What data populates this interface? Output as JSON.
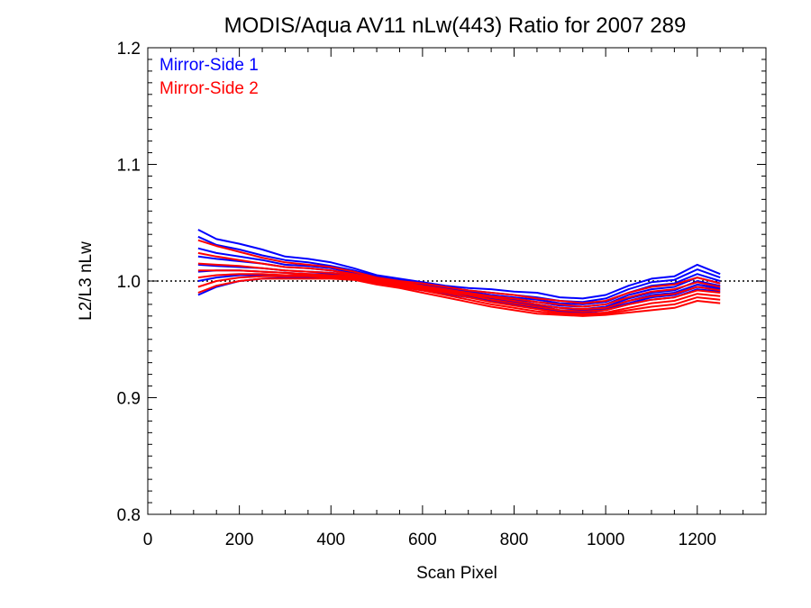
{
  "chart_data": {
    "type": "line",
    "title": "MODIS/Aqua AV11 nLw(443) Ratio for 2007 289",
    "xlabel": "Scan Pixel",
    "ylabel": "L2/L3 nLw",
    "xlim": [
      0,
      1350
    ],
    "ylim": [
      0.8,
      1.2
    ],
    "xticks": [
      "0",
      "200",
      "400",
      "600",
      "800",
      "1000",
      "1200"
    ],
    "yticks": [
      "0.8",
      "0.9",
      "1.0",
      "1.1",
      "1.2"
    ],
    "reference_line": 1.0,
    "legend": {
      "placement": "top-left",
      "entries": [
        {
          "label": "Mirror-Side 1",
          "color": "#0000ff"
        },
        {
          "label": "Mirror-Side 2",
          "color": "#ff0000"
        }
      ]
    },
    "x": [
      110,
      150,
      200,
      250,
      300,
      350,
      400,
      450,
      500,
      550,
      600,
      650,
      700,
      750,
      800,
      850,
      900,
      950,
      1000,
      1050,
      1100,
      1150,
      1200,
      1250
    ],
    "series": [
      {
        "name": "Mirror-Side 1",
        "color": "#0000ff",
        "values": [
          1.044,
          1.036,
          1.032,
          1.027,
          1.021,
          1.019,
          1.016,
          1.011,
          1.005,
          1.002,
          0.999,
          0.996,
          0.994,
          0.993,
          0.991,
          0.99,
          0.986,
          0.985,
          0.988,
          0.996,
          1.002,
          1.004,
          1.014,
          1.006
        ]
      },
      {
        "name": "Mirror-Side 1",
        "color": "#0000ff",
        "values": [
          1.038,
          1.031,
          1.027,
          1.022,
          1.018,
          1.016,
          1.013,
          1.009,
          1.004,
          1.001,
          0.998,
          0.995,
          0.992,
          0.99,
          0.988,
          0.986,
          0.983,
          0.982,
          0.985,
          0.993,
          0.999,
          1.001,
          1.01,
          1.003
        ]
      },
      {
        "name": "Mirror-Side 1",
        "color": "#0000ff",
        "values": [
          1.028,
          1.024,
          1.021,
          1.018,
          1.014,
          1.013,
          1.011,
          1.007,
          1.003,
          1.0,
          0.997,
          0.994,
          0.991,
          0.988,
          0.986,
          0.984,
          0.981,
          0.98,
          0.982,
          0.99,
          0.996,
          0.998,
          1.006,
          1.0
        ]
      },
      {
        "name": "Mirror-Side 1",
        "color": "#0000ff",
        "values": [
          1.021,
          1.019,
          1.017,
          1.015,
          1.012,
          1.011,
          1.009,
          1.006,
          1.002,
          0.999,
          0.996,
          0.993,
          0.99,
          0.987,
          0.984,
          0.982,
          0.979,
          0.978,
          0.98,
          0.988,
          0.993,
          0.995,
          1.003,
          0.998
        ]
      },
      {
        "name": "Mirror-Side 1",
        "color": "#0000ff",
        "values": [
          1.014,
          1.013,
          1.012,
          1.011,
          1.009,
          1.008,
          1.007,
          1.005,
          1.001,
          0.998,
          0.995,
          0.992,
          0.989,
          0.986,
          0.983,
          0.98,
          0.977,
          0.976,
          0.978,
          0.985,
          0.99,
          0.992,
          1.0,
          0.996
        ]
      },
      {
        "name": "Mirror-Side 1",
        "color": "#0000ff",
        "values": [
          1.008,
          1.009,
          1.009,
          1.008,
          1.007,
          1.006,
          1.006,
          1.004,
          1.0,
          0.997,
          0.994,
          0.991,
          0.988,
          0.985,
          0.982,
          0.979,
          0.975,
          0.975,
          0.977,
          0.983,
          0.988,
          0.99,
          0.997,
          0.994
        ]
      },
      {
        "name": "Mirror-Side 1",
        "color": "#0000ff",
        "values": [
          1.0,
          1.003,
          1.005,
          1.005,
          1.005,
          1.005,
          1.004,
          1.003,
          0.999,
          0.996,
          0.993,
          0.99,
          0.987,
          0.984,
          0.981,
          0.978,
          0.974,
          0.974,
          0.976,
          0.981,
          0.986,
          0.988,
          0.995,
          0.993
        ]
      },
      {
        "name": "Mirror-Side 1",
        "color": "#0000ff",
        "values": [
          0.988,
          0.995,
          1.0,
          1.002,
          1.003,
          1.003,
          1.003,
          1.002,
          0.998,
          0.995,
          0.992,
          0.989,
          0.986,
          0.983,
          0.98,
          0.977,
          0.973,
          0.973,
          0.975,
          0.98,
          0.984,
          0.986,
          0.993,
          0.991
        ]
      },
      {
        "name": "Mirror-Side 2",
        "color": "#ff0000",
        "values": [
          1.035,
          1.03,
          1.025,
          1.02,
          1.016,
          1.014,
          1.012,
          1.008,
          1.003,
          1.0,
          0.998,
          0.995,
          0.992,
          0.99,
          0.988,
          0.985,
          0.983,
          0.981,
          0.983,
          0.99,
          0.995,
          0.997,
          1.003,
          0.998
        ]
      },
      {
        "name": "Mirror-Side 2",
        "color": "#ff0000",
        "values": [
          1.024,
          1.021,
          1.018,
          1.015,
          1.012,
          1.011,
          1.009,
          1.006,
          1.002,
          0.999,
          0.996,
          0.993,
          0.99,
          0.987,
          0.985,
          0.982,
          0.98,
          0.978,
          0.98,
          0.986,
          0.991,
          0.993,
          0.999,
          0.995
        ]
      },
      {
        "name": "Mirror-Side 2",
        "color": "#ff0000",
        "values": [
          1.015,
          1.014,
          1.013,
          1.011,
          1.009,
          1.008,
          1.007,
          1.005,
          1.001,
          0.998,
          0.995,
          0.992,
          0.989,
          0.986,
          0.983,
          0.98,
          0.977,
          0.976,
          0.977,
          0.983,
          0.987,
          0.989,
          0.995,
          0.992
        ]
      },
      {
        "name": "Mirror-Side 2",
        "color": "#ff0000",
        "values": [
          1.009,
          1.009,
          1.009,
          1.008,
          1.007,
          1.006,
          1.005,
          1.004,
          1.0,
          0.997,
          0.994,
          0.991,
          0.988,
          0.984,
          0.981,
          0.978,
          0.975,
          0.974,
          0.975,
          0.98,
          0.984,
          0.986,
          0.992,
          0.99
        ]
      },
      {
        "name": "Mirror-Side 2",
        "color": "#ff0000",
        "values": [
          1.003,
          1.005,
          1.006,
          1.006,
          1.005,
          1.005,
          1.004,
          1.003,
          0.999,
          0.996,
          0.993,
          0.99,
          0.986,
          0.982,
          0.979,
          0.976,
          0.973,
          0.972,
          0.973,
          0.977,
          0.981,
          0.983,
          0.989,
          0.987
        ]
      },
      {
        "name": "Mirror-Side 2",
        "color": "#ff0000",
        "values": [
          0.995,
          1.0,
          1.003,
          1.004,
          1.004,
          1.004,
          1.003,
          1.002,
          0.998,
          0.995,
          0.992,
          0.988,
          0.984,
          0.98,
          0.977,
          0.974,
          0.972,
          0.971,
          0.972,
          0.975,
          0.978,
          0.98,
          0.986,
          0.984
        ]
      },
      {
        "name": "Mirror-Side 2",
        "color": "#ff0000",
        "values": [
          0.99,
          0.996,
          1.0,
          1.002,
          1.002,
          1.002,
          1.002,
          1.001,
          0.997,
          0.994,
          0.99,
          0.986,
          0.982,
          0.978,
          0.975,
          0.972,
          0.971,
          0.97,
          0.971,
          0.973,
          0.975,
          0.977,
          0.983,
          0.981
        ]
      }
    ]
  }
}
